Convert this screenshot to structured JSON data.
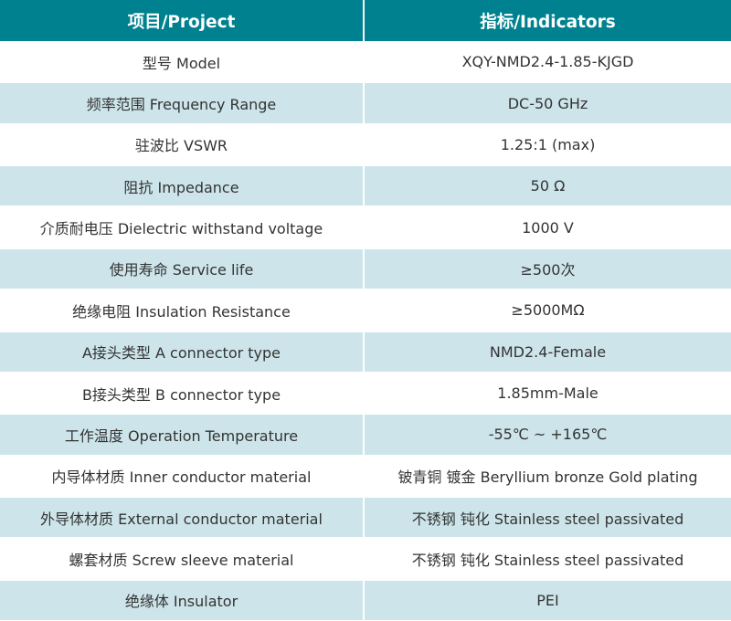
{
  "header": {
    "project": "项目/Project",
    "indicators": "指标/Indicators"
  },
  "colors": {
    "header": "#00818f",
    "alt_row": "#cde5ea"
  },
  "rows": [
    {
      "project": "型号 Model",
      "value": "XQY-NMD2.4-1.85-KJGD"
    },
    {
      "project": "频率范围 Frequency Range",
      "value": "DC-50 GHz"
    },
    {
      "project": "驻波比 VSWR",
      "value": "1.25:1 (max)"
    },
    {
      "project": "阻抗 Impedance",
      "value": "50 Ω"
    },
    {
      "project": "介质耐电压 Dielectric withstand voltage",
      "value": "1000 V"
    },
    {
      "project": "使用寿命 Service life",
      "value": "≥500次"
    },
    {
      "project": "绝缘电阻 Insulation Resistance",
      "value": "≥5000MΩ"
    },
    {
      "project": "A接头类型 A connector type",
      "value": "NMD2.4-Female"
    },
    {
      "project": "B接头类型 B connector type",
      "value": "1.85mm-Male"
    },
    {
      "project": "工作温度 Operation Temperature",
      "value": "-55℃ ~ +165℃"
    },
    {
      "project": "内导体材质 Inner conductor material",
      "value": "铍青铜 镀金 Beryllium bronze Gold plating"
    },
    {
      "project": "外导体材质 External conductor material",
      "value": "不锈钢 钝化 Stainless steel passivated"
    },
    {
      "project": "螺套材质 Screw sleeve material",
      "value": "不锈钢 钝化 Stainless steel passivated"
    },
    {
      "project": "绝缘体 Insulator",
      "value": "PEI"
    }
  ]
}
